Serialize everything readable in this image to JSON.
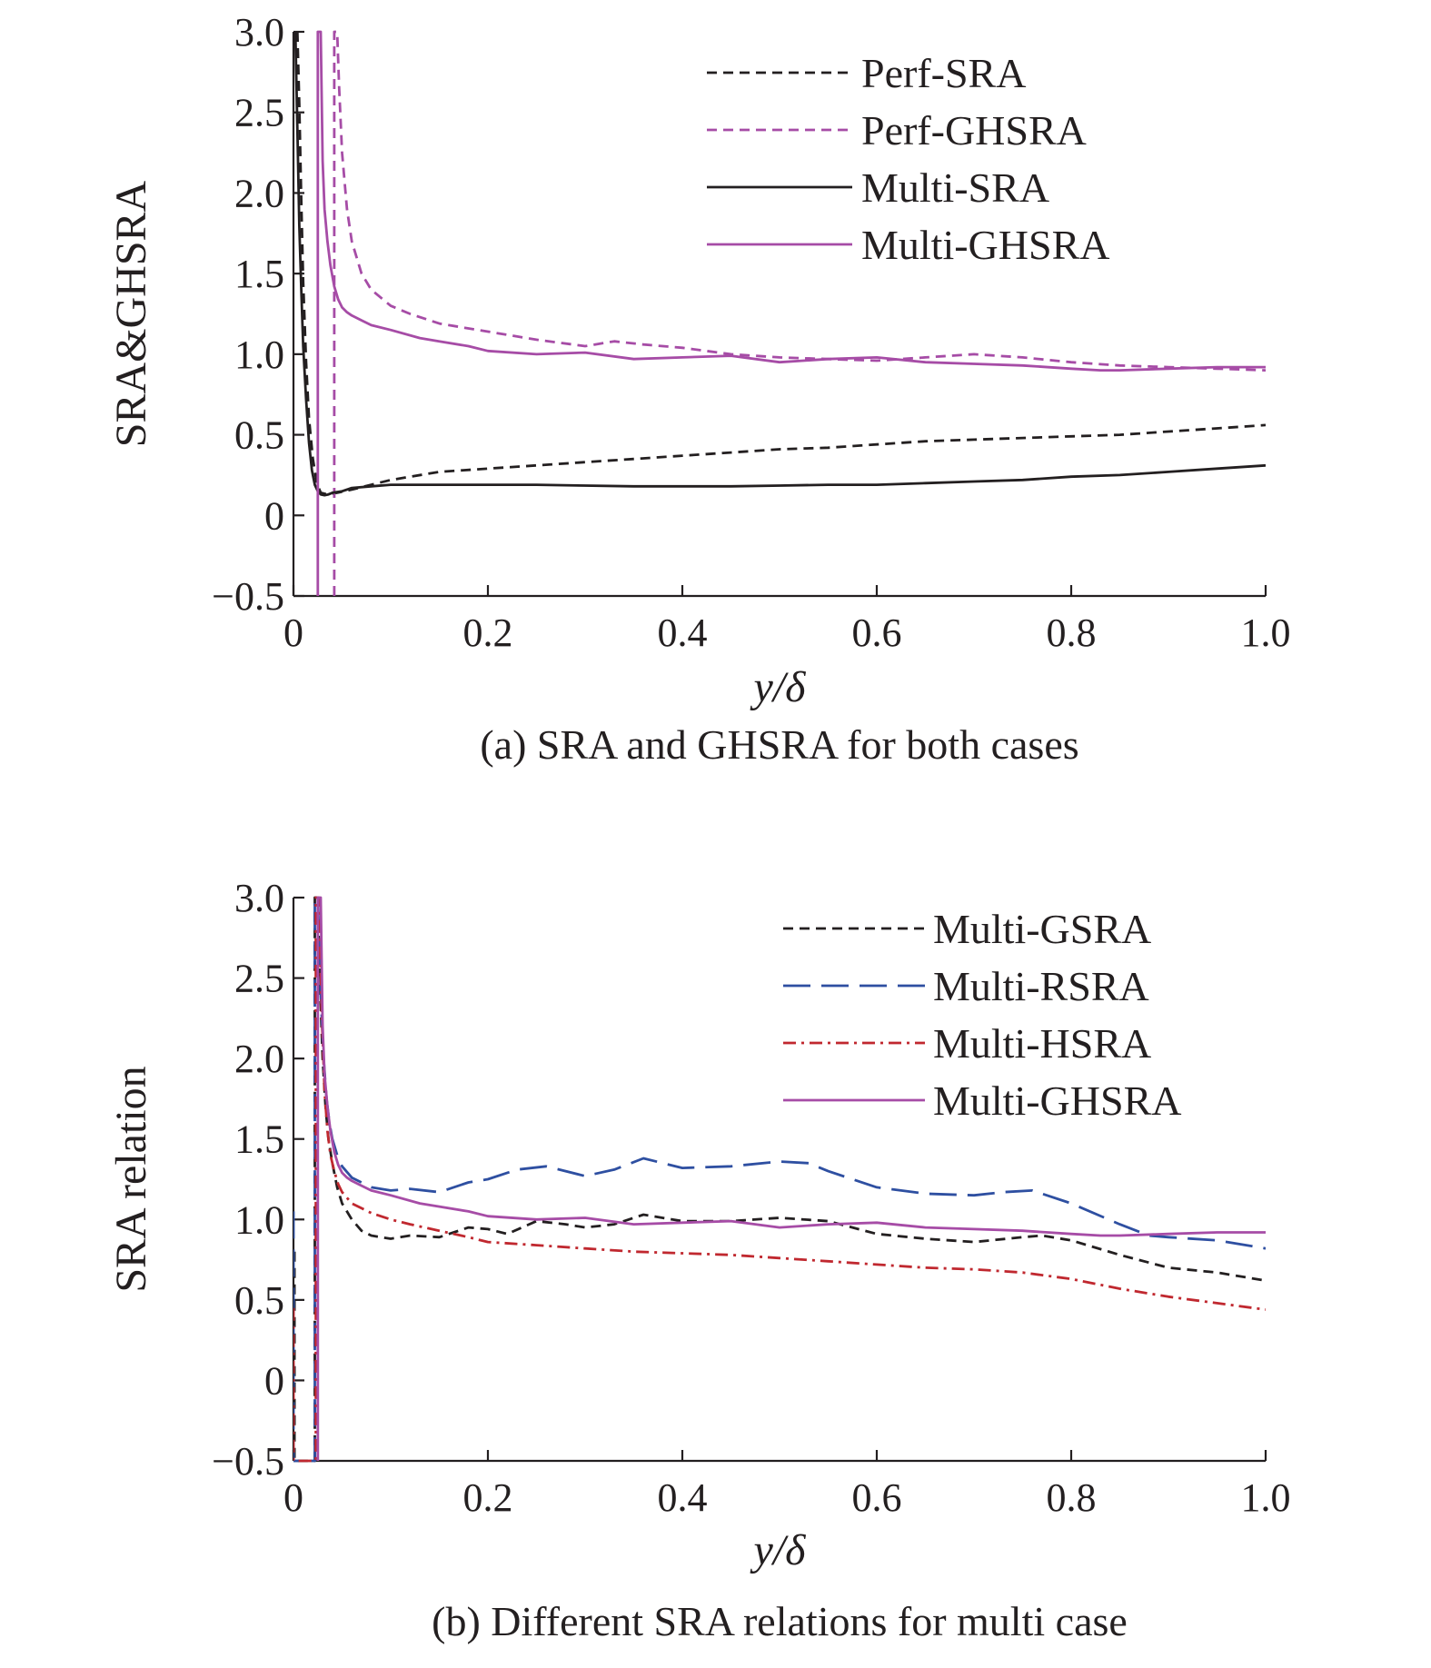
{
  "chart_data": [
    {
      "type": "line",
      "caption": "(a) SRA and GHSRA for both cases",
      "xlabel": "y/δ",
      "ylabel": "SRA&GHSRA",
      "xlim": [
        0,
        1.0
      ],
      "ylim": [
        -0.5,
        3.0
      ],
      "xticks": [
        "0",
        "0.2",
        "0.4",
        "0.6",
        "0.8",
        "1.0"
      ],
      "yticks": [
        "−0.5",
        "0",
        "0.5",
        "1.0",
        "1.5",
        "2.0",
        "2.5",
        "3.0"
      ],
      "legend_position": "top-right",
      "series": [
        {
          "name": "Perf-SRA",
          "color": "#231f20",
          "style": "dashed",
          "x": [
            0.004,
            0.006,
            0.008,
            0.01,
            0.013,
            0.016,
            0.02,
            0.024,
            0.028,
            0.035,
            0.045,
            0.06,
            0.08,
            0.1,
            0.15,
            0.2,
            0.25,
            0.3,
            0.35,
            0.4,
            0.45,
            0.5,
            0.55,
            0.6,
            0.65,
            0.7,
            0.75,
            0.8,
            0.85,
            0.9,
            0.95,
            1.0
          ],
          "y": [
            3.0,
            2.55,
            1.95,
            1.45,
            0.95,
            0.6,
            0.35,
            0.2,
            0.14,
            0.13,
            0.14,
            0.16,
            0.19,
            0.22,
            0.27,
            0.29,
            0.31,
            0.33,
            0.35,
            0.37,
            0.39,
            0.41,
            0.42,
            0.44,
            0.46,
            0.47,
            0.48,
            0.49,
            0.5,
            0.52,
            0.54,
            0.56
          ]
        },
        {
          "name": "Perf-GHSRA",
          "color": "#a64ca6",
          "style": "dashed",
          "x": [
            0.042,
            0.042,
            0.045,
            0.047,
            0.05,
            0.055,
            0.06,
            0.07,
            0.08,
            0.1,
            0.12,
            0.15,
            0.18,
            0.2,
            0.25,
            0.3,
            0.33,
            0.36,
            0.4,
            0.45,
            0.5,
            0.55,
            0.6,
            0.65,
            0.7,
            0.75,
            0.8,
            0.85,
            0.9,
            0.95,
            1.0
          ],
          "y": [
            -0.5,
            3.0,
            3.0,
            2.65,
            2.25,
            1.9,
            1.7,
            1.5,
            1.4,
            1.3,
            1.25,
            1.19,
            1.16,
            1.14,
            1.09,
            1.05,
            1.08,
            1.06,
            1.04,
            1.0,
            0.98,
            0.97,
            0.96,
            0.98,
            1.0,
            0.98,
            0.95,
            0.93,
            0.92,
            0.91,
            0.9
          ]
        },
        {
          "name": "Multi-SRA",
          "color": "#231f20",
          "style": "solid",
          "x": [
            0.002,
            0.004,
            0.006,
            0.008,
            0.01,
            0.013,
            0.016,
            0.019,
            0.022,
            0.025,
            0.028,
            0.032,
            0.036,
            0.04,
            0.05,
            0.06,
            0.08,
            0.1,
            0.15,
            0.2,
            0.25,
            0.3,
            0.35,
            0.4,
            0.45,
            0.5,
            0.55,
            0.6,
            0.65,
            0.7,
            0.75,
            0.8,
            0.85,
            0.9,
            0.95,
            1.0
          ],
          "y": [
            3.0,
            2.4,
            1.8,
            1.4,
            1.05,
            0.72,
            0.45,
            0.28,
            0.19,
            0.15,
            0.13,
            0.125,
            0.13,
            0.14,
            0.15,
            0.17,
            0.18,
            0.19,
            0.19,
            0.19,
            0.19,
            0.185,
            0.18,
            0.18,
            0.18,
            0.185,
            0.19,
            0.19,
            0.2,
            0.21,
            0.22,
            0.24,
            0.25,
            0.27,
            0.29,
            0.31
          ]
        },
        {
          "name": "Multi-GHSRA",
          "color": "#a64ca6",
          "style": "solid",
          "x": [
            0.025,
            0.025,
            0.028,
            0.03,
            0.032,
            0.035,
            0.038,
            0.042,
            0.046,
            0.05,
            0.055,
            0.06,
            0.07,
            0.08,
            0.1,
            0.13,
            0.15,
            0.18,
            0.2,
            0.25,
            0.3,
            0.35,
            0.4,
            0.45,
            0.5,
            0.55,
            0.6,
            0.65,
            0.7,
            0.75,
            0.8,
            0.83,
            0.85,
            0.9,
            0.95,
            1.0
          ],
          "y": [
            -0.5,
            3.0,
            3.0,
            2.2,
            1.9,
            1.7,
            1.55,
            1.42,
            1.34,
            1.29,
            1.26,
            1.24,
            1.21,
            1.18,
            1.15,
            1.1,
            1.08,
            1.05,
            1.02,
            1.0,
            1.01,
            0.97,
            0.98,
            0.99,
            0.95,
            0.97,
            0.98,
            0.95,
            0.94,
            0.93,
            0.91,
            0.9,
            0.9,
            0.91,
            0.92,
            0.92
          ]
        }
      ]
    },
    {
      "type": "line",
      "caption": "(b) Different SRA relations for multi case",
      "xlabel": "y/δ",
      "ylabel": "SRA relation",
      "xlim": [
        0,
        1.0
      ],
      "ylim": [
        -0.5,
        3.0
      ],
      "xticks": [
        "0",
        "0.2",
        "0.4",
        "0.6",
        "0.8",
        "1.0"
      ],
      "yticks": [
        "−0.5",
        "0",
        "0.5",
        "1.0",
        "1.5",
        "2.0",
        "2.5",
        "3.0"
      ],
      "legend_position": "top-right",
      "series": [
        {
          "name": "Multi-GSRA",
          "color": "#231f20",
          "style": "dashed",
          "x": [
            0.001,
            0.001,
            0.022,
            0.022,
            0.025,
            0.027,
            0.03,
            0.033,
            0.036,
            0.04,
            0.045,
            0.05,
            0.06,
            0.07,
            0.08,
            0.1,
            0.12,
            0.15,
            0.18,
            0.2,
            0.22,
            0.25,
            0.28,
            0.3,
            0.33,
            0.36,
            0.4,
            0.45,
            0.5,
            0.55,
            0.6,
            0.65,
            0.7,
            0.75,
            0.77,
            0.8,
            0.85,
            0.9,
            0.95,
            1.0
          ],
          "y": [
            0.8,
            -0.5,
            -0.5,
            3.0,
            3.0,
            2.5,
            2.0,
            1.7,
            1.5,
            1.35,
            1.2,
            1.1,
            1.0,
            0.93,
            0.9,
            0.88,
            0.9,
            0.89,
            0.95,
            0.94,
            0.91,
            0.99,
            0.97,
            0.95,
            0.97,
            1.03,
            0.99,
            0.99,
            1.01,
            0.99,
            0.91,
            0.88,
            0.86,
            0.89,
            0.9,
            0.87,
            0.78,
            0.7,
            0.67,
            0.62
          ]
        },
        {
          "name": "Multi-RSRA",
          "color": "#2e4fa1",
          "style": "longdash",
          "x": [
            0.0,
            0.0,
            0.022,
            0.022,
            0.025,
            0.028,
            0.031,
            0.034,
            0.037,
            0.04,
            0.045,
            0.05,
            0.06,
            0.08,
            0.1,
            0.12,
            0.15,
            0.18,
            0.2,
            0.23,
            0.26,
            0.3,
            0.33,
            0.36,
            0.4,
            0.45,
            0.5,
            0.53,
            0.55,
            0.6,
            0.65,
            0.7,
            0.73,
            0.76,
            0.8,
            0.85,
            0.88,
            0.9,
            0.95,
            1.0
          ],
          "y": [
            1.05,
            -0.5,
            -0.5,
            3.0,
            3.0,
            2.4,
            2.0,
            1.75,
            1.6,
            1.5,
            1.4,
            1.33,
            1.26,
            1.2,
            1.18,
            1.19,
            1.17,
            1.23,
            1.25,
            1.31,
            1.33,
            1.27,
            1.31,
            1.38,
            1.32,
            1.33,
            1.36,
            1.35,
            1.3,
            1.2,
            1.16,
            1.15,
            1.17,
            1.18,
            1.1,
            0.97,
            0.9,
            0.89,
            0.87,
            0.82
          ]
        },
        {
          "name": "Multi-HSRA",
          "color": "#c0282f",
          "style": "dashdot",
          "x": [
            0.0,
            0.0,
            0.023,
            0.023,
            0.026,
            0.029,
            0.032,
            0.035,
            0.038,
            0.042,
            0.046,
            0.05,
            0.06,
            0.08,
            0.1,
            0.12,
            0.15,
            0.18,
            0.2,
            0.25,
            0.3,
            0.35,
            0.4,
            0.45,
            0.5,
            0.55,
            0.6,
            0.65,
            0.7,
            0.75,
            0.8,
            0.85,
            0.9,
            0.95,
            1.0
          ],
          "y": [
            0.45,
            -0.5,
            -0.5,
            3.0,
            3.0,
            2.3,
            1.8,
            1.55,
            1.4,
            1.3,
            1.22,
            1.17,
            1.1,
            1.04,
            1.0,
            0.97,
            0.93,
            0.89,
            0.86,
            0.84,
            0.82,
            0.8,
            0.79,
            0.78,
            0.76,
            0.74,
            0.72,
            0.7,
            0.69,
            0.67,
            0.63,
            0.57,
            0.52,
            0.48,
            0.44
          ]
        },
        {
          "name": "Multi-GHSRA",
          "color": "#a64ca6",
          "style": "solid",
          "x": [
            0.025,
            0.025,
            0.028,
            0.03,
            0.032,
            0.035,
            0.038,
            0.042,
            0.046,
            0.05,
            0.055,
            0.06,
            0.07,
            0.08,
            0.1,
            0.13,
            0.15,
            0.18,
            0.2,
            0.25,
            0.3,
            0.35,
            0.4,
            0.45,
            0.5,
            0.55,
            0.6,
            0.65,
            0.7,
            0.75,
            0.8,
            0.83,
            0.85,
            0.9,
            0.95,
            1.0
          ],
          "y": [
            -0.5,
            3.0,
            3.0,
            2.2,
            1.9,
            1.7,
            1.55,
            1.42,
            1.34,
            1.29,
            1.26,
            1.24,
            1.21,
            1.18,
            1.15,
            1.1,
            1.08,
            1.05,
            1.02,
            1.0,
            1.01,
            0.97,
            0.98,
            0.99,
            0.95,
            0.97,
            0.98,
            0.95,
            0.94,
            0.93,
            0.91,
            0.9,
            0.9,
            0.91,
            0.92,
            0.92
          ]
        }
      ]
    }
  ]
}
